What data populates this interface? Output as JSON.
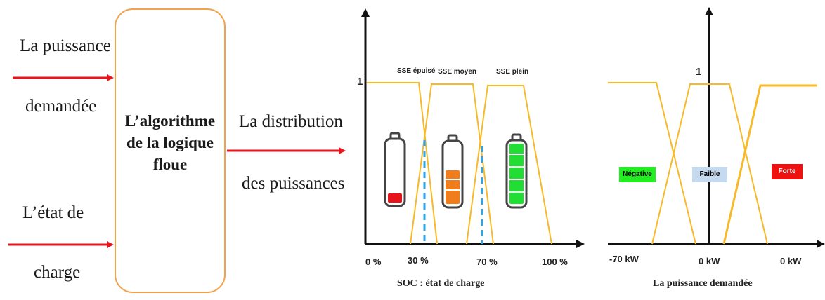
{
  "inputs": {
    "power_line1": "La puissance",
    "power_line2": "demandée",
    "soc_line1": "L’état de",
    "soc_line2": "charge"
  },
  "algorithm": {
    "line1": "L’algorithme",
    "line2": "de la logique",
    "line3": "floue"
  },
  "output": {
    "line1": "La distribution",
    "line2": "des puissances"
  },
  "soc_chart": {
    "y_label": "1",
    "mf_labels": [
      "SSE épuisé",
      "SSE moyen",
      "SSE plein"
    ],
    "ticks": [
      "0 %",
      "30 %",
      "70 %",
      "100 %"
    ],
    "x_title": "SOC : état de charge"
  },
  "power_chart": {
    "y_label": "1",
    "mf_labels": [
      "Négative",
      "Faible",
      "Forte"
    ],
    "ticks": [
      "-70 kW",
      "0 kW",
      "0 kW"
    ],
    "x_title": "La puissance demandée"
  },
  "colors": {
    "arrow": "#e8141c",
    "box_border": "#f0a24c",
    "mf_line": "#f7b928",
    "dashed": "#2ea3e8",
    "battery_low": "#e8141c",
    "battery_mid": "#f07d1c",
    "battery_full": "#22dd33",
    "tag_negative": "#22ee22",
    "tag_faible": "#c5d9ef",
    "tag_forte": "#ee1111"
  }
}
